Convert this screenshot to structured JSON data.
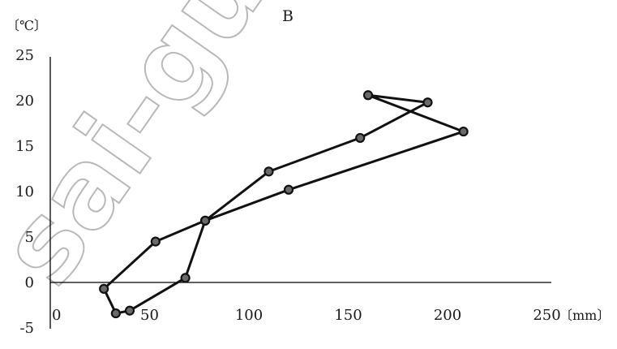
{
  "watermark": "sai-guild",
  "chart_data": {
    "type": "line",
    "title": "B",
    "ylabel": "〔℃〕",
    "xlabel": "〔mm〕",
    "xlim": [
      0,
      250
    ],
    "ylim": [
      -5,
      25
    ],
    "x_ticks": [
      0,
      50,
      100,
      150,
      200,
      250
    ],
    "y_ticks": [
      -5,
      0,
      5,
      10,
      15,
      20,
      25
    ],
    "x_tick_labels": [
      "0",
      "50",
      "100",
      "150",
      "200",
      "250"
    ],
    "y_tick_labels": [
      "-5",
      "0",
      "5",
      "10",
      "15",
      "20",
      "25"
    ],
    "grid": false,
    "line_color": "#111111",
    "marker_color": "#6a6a6a",
    "series": [
      {
        "x": [
          33,
          40,
          68,
          78,
          120,
          208,
          160,
          190,
          156,
          110,
          78,
          53,
          27,
          33
        ],
        "y": [
          -3.4,
          -3.1,
          0.5,
          6.8,
          10.2,
          16.6,
          20.6,
          19.8,
          15.9,
          12.2,
          6.8,
          4.5,
          -0.7,
          -3.4
        ]
      }
    ]
  }
}
